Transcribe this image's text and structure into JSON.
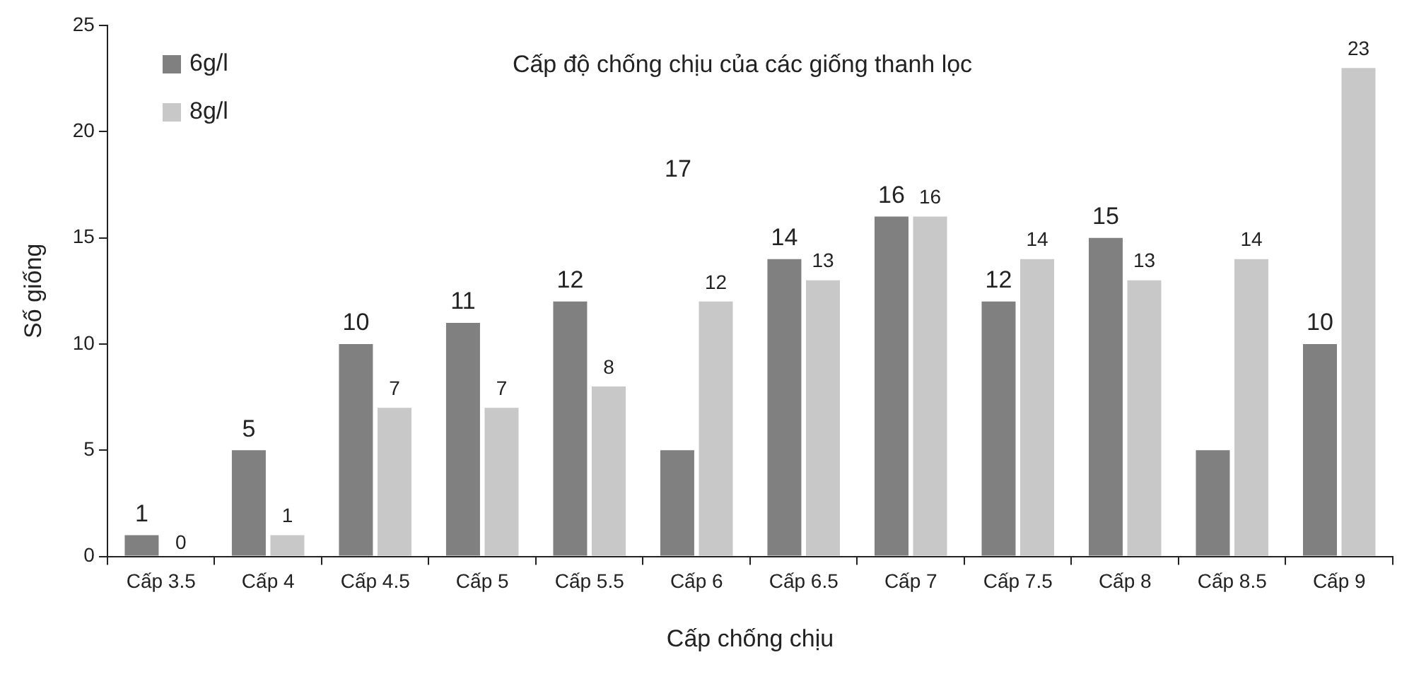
{
  "chart_data": {
    "type": "bar",
    "title": "Cấp độ chống chịu của các giống thanh lọc",
    "xlabel": "Cấp chống chịu",
    "ylabel": "Số giống",
    "categories": [
      "Cấp 3.5",
      "Cấp 4",
      "Cấp 4.5",
      "Cấp 5",
      "Cấp 5.5",
      "Cấp 6",
      "Cấp 6.5",
      "Cấp 7",
      "Cấp 7.5",
      "Cấp 8",
      "Cấp 8.5",
      "Cấp 9"
    ],
    "series": [
      {
        "name": "6g/l",
        "color": "#808080",
        "values": [
          1,
          5,
          10,
          11,
          12,
          5,
          14,
          16,
          12,
          15,
          5,
          10
        ],
        "value_labels": [
          "1",
          "5",
          "10",
          "11",
          "12",
          null,
          "14",
          "16",
          "12",
          "15",
          null,
          "10"
        ]
      },
      {
        "name": "8g/l",
        "color": "#c8c8c8",
        "values": [
          0,
          1,
          7,
          7,
          8,
          12,
          13,
          16,
          14,
          13,
          14,
          23
        ],
        "value_labels": [
          null,
          "1",
          "7",
          "7",
          "8",
          "12",
          "13",
          "16",
          "14",
          "13",
          "14",
          "23"
        ]
      }
    ],
    "annotations": [
      "17",
      {
        "text": "0",
        "x": "Cấp 3.5",
        "y": 0
      }
    ],
    "ylim": [
      0,
      25
    ],
    "yticks": [
      0,
      5,
      10,
      15,
      20,
      25
    ],
    "grid": false,
    "legend": "top left"
  }
}
